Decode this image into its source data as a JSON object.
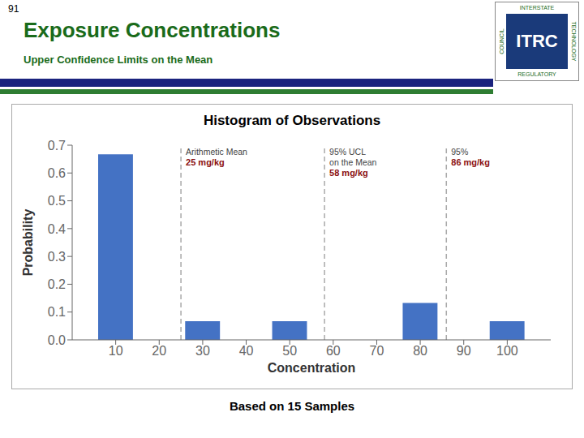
{
  "slide_number": "91",
  "title": "Exposure Concentrations",
  "subtitle": "Upper Confidence Limits on the Mean",
  "logo_text": {
    "center": "ITRC",
    "top": "INTERSTATE",
    "right": "TECHNOLOGY",
    "bottom": "REGULATORY",
    "left": "COUNCIL"
  },
  "footer": "Based on 15 Samples",
  "chart_data": {
    "type": "bar",
    "title": "Histogram of Observations",
    "x": [
      10,
      30,
      50,
      80,
      100
    ],
    "values": [
      0.667,
      0.067,
      0.067,
      0.133,
      0.067
    ],
    "bar_width": 8,
    "color": "#4472C4",
    "xlabel": "Concentration",
    "ylabel": "Probability",
    "xlim": [
      0,
      110
    ],
    "ylim": [
      0,
      0.7
    ],
    "xticks": [
      10,
      20,
      30,
      40,
      50,
      60,
      70,
      80,
      90,
      100
    ],
    "yticks": [
      {
        "value": 0,
        "label": "0.0"
      },
      0.1,
      0.2,
      0.3,
      0.4,
      0.5,
      0.6,
      0.7
    ],
    "grid": false,
    "line_style": "dashed",
    "annotations": [
      {
        "x": 25,
        "color": "#aaaaaa",
        "lines": [
          {
            "text": "Arithmetic Mean"
          },
          {
            "text": "25 mg/kg",
            "color": "#8B1010"
          }
        ]
      },
      {
        "x": 58,
        "color": "#aaaaaa",
        "lines": [
          {
            "text": "95% UCL"
          },
          {
            "text": "on the Mean"
          },
          {
            "text": "58 mg/kg",
            "color": "#8B1010"
          }
        ]
      },
      {
        "x": 86,
        "color": "#aaaaaa",
        "lines": [
          {
            "text": "95%"
          },
          {
            "text": "86 mg/kg",
            "color": "#8B1010"
          }
        ]
      }
    ]
  }
}
